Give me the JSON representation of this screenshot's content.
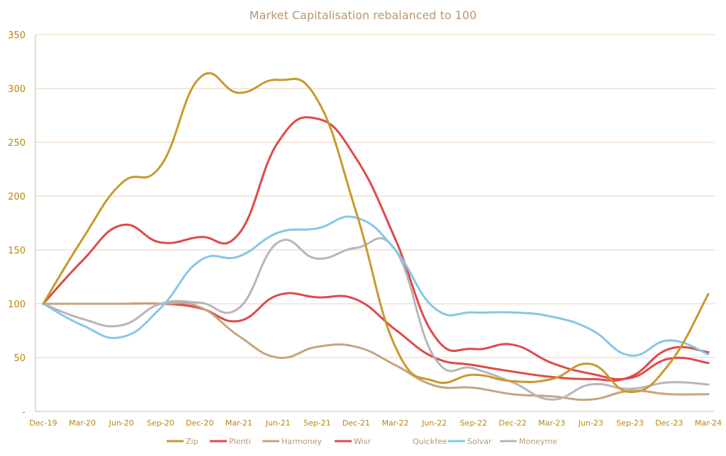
{
  "chart_data": {
    "type": "line",
    "title": "Market Capitalisation rebalanced to 100",
    "xlabel": "",
    "ylabel": "",
    "ylim": [
      0,
      350
    ],
    "yticks": [
      {
        "value": 350,
        "label": "350"
      },
      {
        "value": 300,
        "label": "300"
      },
      {
        "value": 250,
        "label": "250"
      },
      {
        "value": 200,
        "label": "200"
      },
      {
        "value": 150,
        "label": "150"
      },
      {
        "value": 100,
        "label": "100"
      },
      {
        "value": 50,
        "label": "50"
      },
      {
        "value": 0,
        "label": "-"
      }
    ],
    "categories": [
      "Dec-19",
      "Mar-20",
      "Jun-20",
      "Sep-20",
      "Dec-20",
      "Mar-21",
      "Jun-21",
      "Sep-21",
      "Dec-21",
      "Mar-22",
      "Jun-22",
      "Sep-22",
      "Dec-22",
      "Mar-23",
      "Jun-23",
      "Sep-23",
      "Dec-23",
      "Mar-24"
    ],
    "grid": true,
    "legend_position": "bottom",
    "series": [
      {
        "name": "Zip",
        "color": "#c8992c",
        "values": [
          100,
          160,
          212,
          228,
          310,
          296,
          308,
          290,
          185,
          60,
          28,
          34,
          28,
          30,
          44,
          18,
          44,
          109
        ]
      },
      {
        "name": "Plenti",
        "color": "#e04848",
        "values": [
          100,
          140,
          173,
          157,
          162,
          165,
          250,
          272,
          235,
          160,
          70,
          58,
          62,
          45,
          35,
          31,
          49,
          45
        ]
      },
      {
        "name": "Harmoney",
        "color": "#c8a47c",
        "values": [
          100,
          100,
          100,
          100,
          97,
          70,
          50,
          60,
          60,
          43,
          24,
          22,
          16,
          14,
          11,
          19,
          16,
          16
        ]
      },
      {
        "name": "Wisr",
        "color": "#e04848",
        "values": [
          100,
          100,
          100,
          100,
          96,
          84,
          108,
          106,
          104,
          76,
          50,
          43,
          37,
          32,
          30,
          32,
          58,
          55
        ]
      },
      {
        "name": "Quickfee",
        "color": "#ffffff",
        "values": [
          null,
          null,
          null,
          null,
          null,
          null,
          null,
          null,
          null,
          null,
          null,
          null,
          null,
          null,
          null,
          null,
          null,
          null
        ]
      },
      {
        "name": "Solvar",
        "color": "#85c8e4",
        "values": [
          100,
          80,
          69,
          96,
          140,
          144,
          166,
          170,
          180,
          150,
          96,
          92,
          92,
          88,
          76,
          52,
          66,
          53
        ]
      },
      {
        "name": "Moneyme",
        "color": "#b8b4bc",
        "values": [
          100,
          86,
          80,
          100,
          101,
          96,
          157,
          142,
          152,
          150,
          50,
          40,
          27,
          11,
          25,
          21,
          27,
          25
        ]
      }
    ]
  }
}
